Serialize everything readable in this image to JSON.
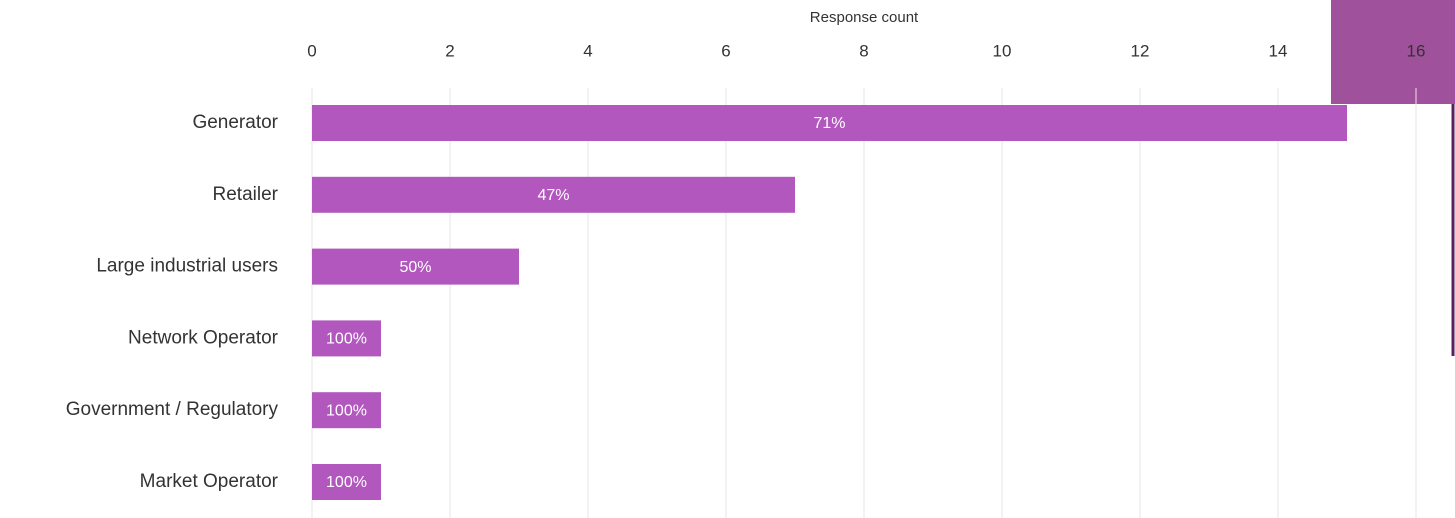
{
  "chart_data": {
    "type": "barh",
    "x_label": "Response count",
    "categories": [
      "Generator",
      "Retailer",
      "Large industrial users",
      "Network Operator",
      "Government / Regulatory",
      "Market Operator"
    ],
    "values": [
      15,
      7,
      3,
      1,
      1,
      1
    ],
    "share_labels": [
      "71%",
      "47%",
      "50%",
      "100%",
      "100%",
      "100%"
    ],
    "color": "#b157bd",
    "xlim": [
      0,
      16
    ],
    "xticks": [
      0,
      2,
      4,
      6,
      8,
      10,
      12,
      14,
      16
    ],
    "grid": true
  }
}
